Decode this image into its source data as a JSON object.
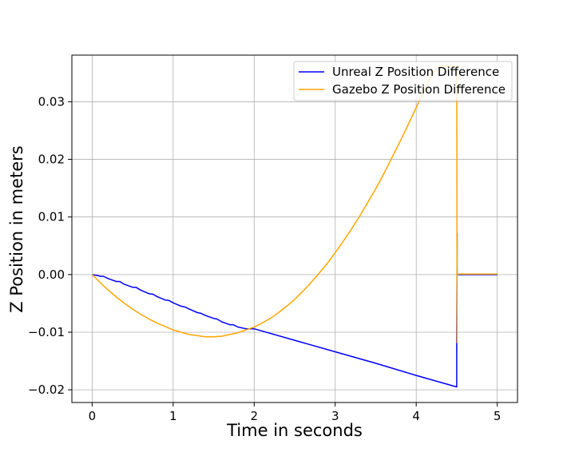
{
  "chart_data": {
    "type": "line",
    "title": "",
    "xlabel": "Time in seconds",
    "ylabel": "Z Position in meters",
    "xlim": [
      -0.25,
      5.25
    ],
    "ylim": [
      -0.0222,
      0.0381
    ],
    "x_ticks": [
      0,
      1,
      2,
      3,
      4,
      5
    ],
    "x_tick_labels": [
      "0",
      "1",
      "2",
      "3",
      "4",
      "5"
    ],
    "y_ticks": [
      -0.02,
      -0.01,
      0.0,
      0.01,
      0.02,
      0.03
    ],
    "y_tick_labels": [
      "−0.02",
      "−0.01",
      "0.00",
      "0.01",
      "0.02",
      "0.03"
    ],
    "grid": true,
    "legend_position": "top-right",
    "series": [
      {
        "name": "Unreal Z Position Difference",
        "color": "#0000ff",
        "x": [
          0.0,
          0.08,
          0.1,
          0.14,
          0.2,
          0.3,
          0.34,
          0.4,
          0.5,
          0.54,
          0.6,
          0.7,
          0.75,
          0.8,
          0.9,
          0.95,
          1.0,
          1.1,
          1.14,
          1.2,
          1.3,
          1.34,
          1.4,
          1.5,
          1.54,
          1.6,
          1.7,
          1.74,
          1.8,
          1.9,
          1.95,
          2.0,
          2.5,
          3.0,
          3.5,
          4.0,
          4.5,
          4.5,
          4.505,
          4.505,
          5.0
        ],
        "y": [
          0.0,
          -0.0002,
          -0.0003,
          -0.0003,
          -0.0007,
          -0.0012,
          -0.0012,
          -0.0017,
          -0.0022,
          -0.0022,
          -0.0027,
          -0.0033,
          -0.0034,
          -0.0038,
          -0.0044,
          -0.0045,
          -0.0049,
          -0.0055,
          -0.0056,
          -0.006,
          -0.0066,
          -0.0067,
          -0.0071,
          -0.0076,
          -0.0077,
          -0.0082,
          -0.0087,
          -0.0087,
          -0.0091,
          -0.0094,
          -0.0094,
          -0.0094,
          -0.0114,
          -0.0134,
          -0.0154,
          -0.0175,
          -0.0195,
          -0.012,
          0.0072,
          0.0,
          0.0
        ]
      },
      {
        "name": "Gazebo Z Position Difference",
        "color": "#ffa500",
        "x": [
          0.0,
          0.1,
          0.2,
          0.3,
          0.4,
          0.5,
          0.6,
          0.7,
          0.8,
          0.9,
          1.0,
          1.1,
          1.2,
          1.3,
          1.4,
          1.5,
          1.6,
          1.7,
          1.8,
          1.9,
          2.0,
          2.1,
          2.2,
          2.3,
          2.4,
          2.5,
          2.6,
          2.7,
          2.8,
          2.9,
          3.0,
          3.1,
          3.2,
          3.3,
          3.4,
          3.5,
          3.6,
          3.7,
          3.8,
          3.9,
          4.0,
          4.1,
          4.2,
          4.3,
          4.4,
          4.5,
          4.5,
          4.505,
          4.505,
          5.0
        ],
        "y": [
          0.0,
          -0.0014,
          -0.0027,
          -0.0039,
          -0.005,
          -0.006,
          -0.0069,
          -0.0077,
          -0.0084,
          -0.009,
          -0.0096,
          -0.01,
          -0.0104,
          -0.0106,
          -0.0108,
          -0.0108,
          -0.0107,
          -0.0104,
          -0.0101,
          -0.0096,
          -0.0091,
          -0.0084,
          -0.0076,
          -0.0066,
          -0.0055,
          -0.0043,
          -0.0029,
          -0.0014,
          0.0002,
          0.0019,
          0.0038,
          0.0058,
          0.0079,
          0.0101,
          0.0125,
          0.0149,
          0.0175,
          0.0203,
          0.0231,
          0.026,
          0.029,
          0.032,
          0.035,
          0.0362,
          0.0362,
          0.0362,
          0.0362,
          -0.0118,
          0.0001,
          0.0001
        ]
      }
    ]
  }
}
